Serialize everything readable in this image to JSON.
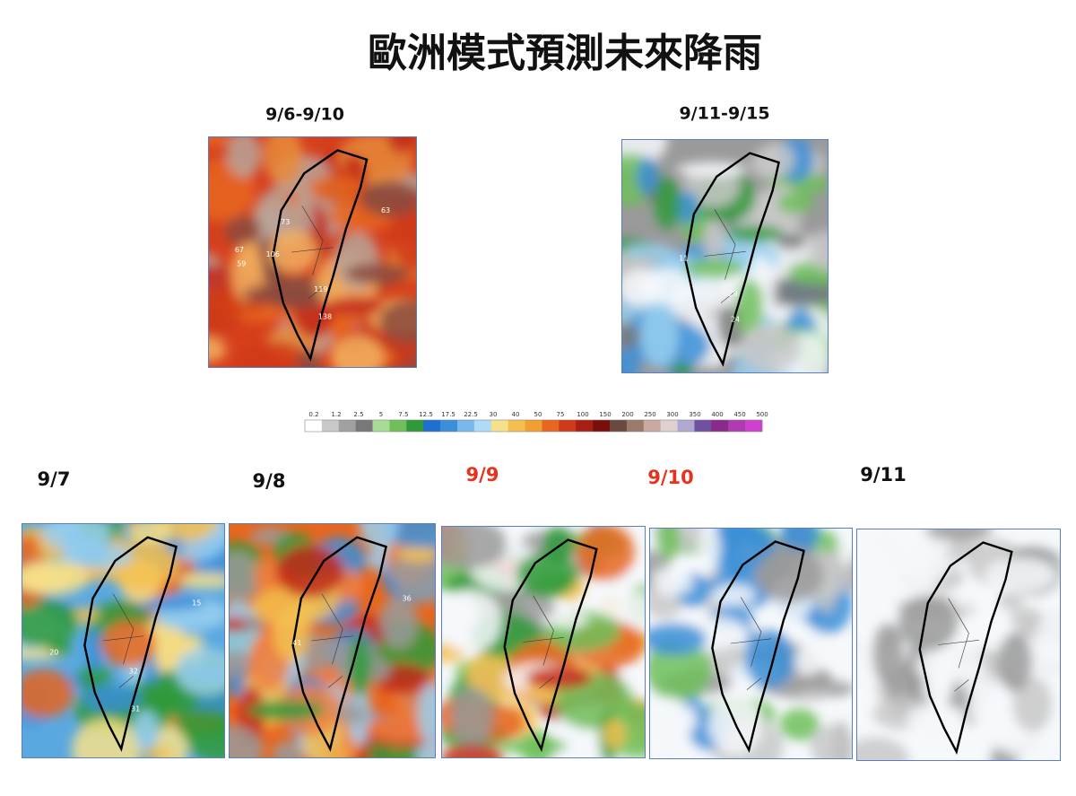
{
  "title": "歐洲模式預測未來降雨",
  "period_maps": [
    {
      "label": "9/6-9/10",
      "map_labels": [
        "73",
        "106",
        "67",
        "59",
        "63",
        "119",
        "138"
      ]
    },
    {
      "label": "9/11-9/15",
      "map_labels": [
        "11",
        "29",
        "24"
      ]
    }
  ],
  "colorbar": {
    "ticks": [
      0.2,
      1.2,
      2.5,
      5,
      7.5,
      12.5,
      17.5,
      22.5,
      30,
      40,
      50,
      75,
      100,
      150,
      200,
      250,
      300,
      350,
      400,
      450,
      500
    ],
    "colors": [
      "#ffffff",
      "#c8c8c8",
      "#a0a0a0",
      "#787878",
      "#a6dc96",
      "#6fbf5a",
      "#2f9a3a",
      "#1e6fd0",
      "#3a8fd8",
      "#7ab8ea",
      "#b0daf5",
      "#f7e08a",
      "#f3c050",
      "#f0a030",
      "#e8661e",
      "#d03a18",
      "#a81e14",
      "#7a0e0a",
      "#6a4a40",
      "#9a7a6a",
      "#c8aaa0",
      "#e0d0d0",
      "#b0a8d0",
      "#7050a0",
      "#8a2a8a",
      "#b03ab0",
      "#d040d0"
    ]
  },
  "daily_maps": [
    {
      "label": "9/7",
      "color": "#111111",
      "map_labels": [
        "15",
        "20",
        "32",
        "31"
      ]
    },
    {
      "label": "9/8",
      "color": "#111111",
      "map_labels": [
        "36",
        "41"
      ]
    },
    {
      "label": "9/9",
      "color": "#e8321e",
      "map_labels": []
    },
    {
      "label": "9/10",
      "color": "#e8321e",
      "map_labels": []
    },
    {
      "label": "9/11",
      "color": "#111111",
      "map_labels": []
    }
  ]
}
